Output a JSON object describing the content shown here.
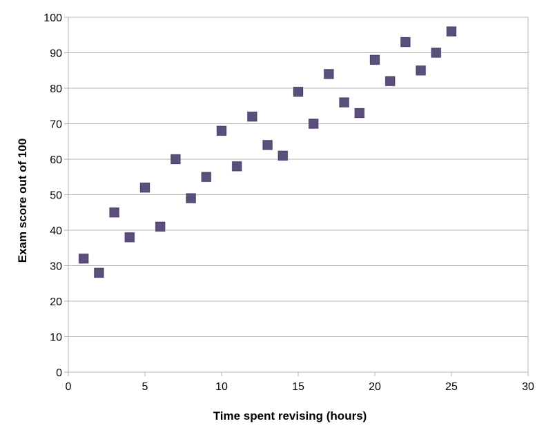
{
  "chart_data": {
    "type": "scatter",
    "title": "",
    "xlabel": "Time spent revising (hours)",
    "ylabel": "Exam score out of 100",
    "xlim": [
      0,
      30
    ],
    "ylim": [
      0,
      100
    ],
    "x_ticks": [
      0,
      5,
      10,
      15,
      20,
      25,
      30
    ],
    "y_ticks": [
      0,
      10,
      20,
      30,
      40,
      50,
      60,
      70,
      80,
      90,
      100
    ],
    "grid": "horizontal",
    "legend": "none",
    "marker": "square",
    "marker_color": "#5b4f7c",
    "series": [
      {
        "points": [
          {
            "x": 1,
            "y": 32
          },
          {
            "x": 2,
            "y": 28
          },
          {
            "x": 3,
            "y": 45
          },
          {
            "x": 4,
            "y": 38
          },
          {
            "x": 5,
            "y": 52
          },
          {
            "x": 6,
            "y": 41
          },
          {
            "x": 7,
            "y": 60
          },
          {
            "x": 8,
            "y": 49
          },
          {
            "x": 9,
            "y": 55
          },
          {
            "x": 10,
            "y": 68
          },
          {
            "x": 11,
            "y": 58
          },
          {
            "x": 12,
            "y": 72
          },
          {
            "x": 13,
            "y": 64
          },
          {
            "x": 14,
            "y": 61
          },
          {
            "x": 15,
            "y": 79
          },
          {
            "x": 16,
            "y": 70
          },
          {
            "x": 17,
            "y": 84
          },
          {
            "x": 18,
            "y": 76
          },
          {
            "x": 19,
            "y": 73
          },
          {
            "x": 20,
            "y": 88
          },
          {
            "x": 21,
            "y": 82
          },
          {
            "x": 22,
            "y": 93
          },
          {
            "x": 23,
            "y": 85
          },
          {
            "x": 24,
            "y": 90
          },
          {
            "x": 25,
            "y": 96
          }
        ]
      }
    ]
  }
}
